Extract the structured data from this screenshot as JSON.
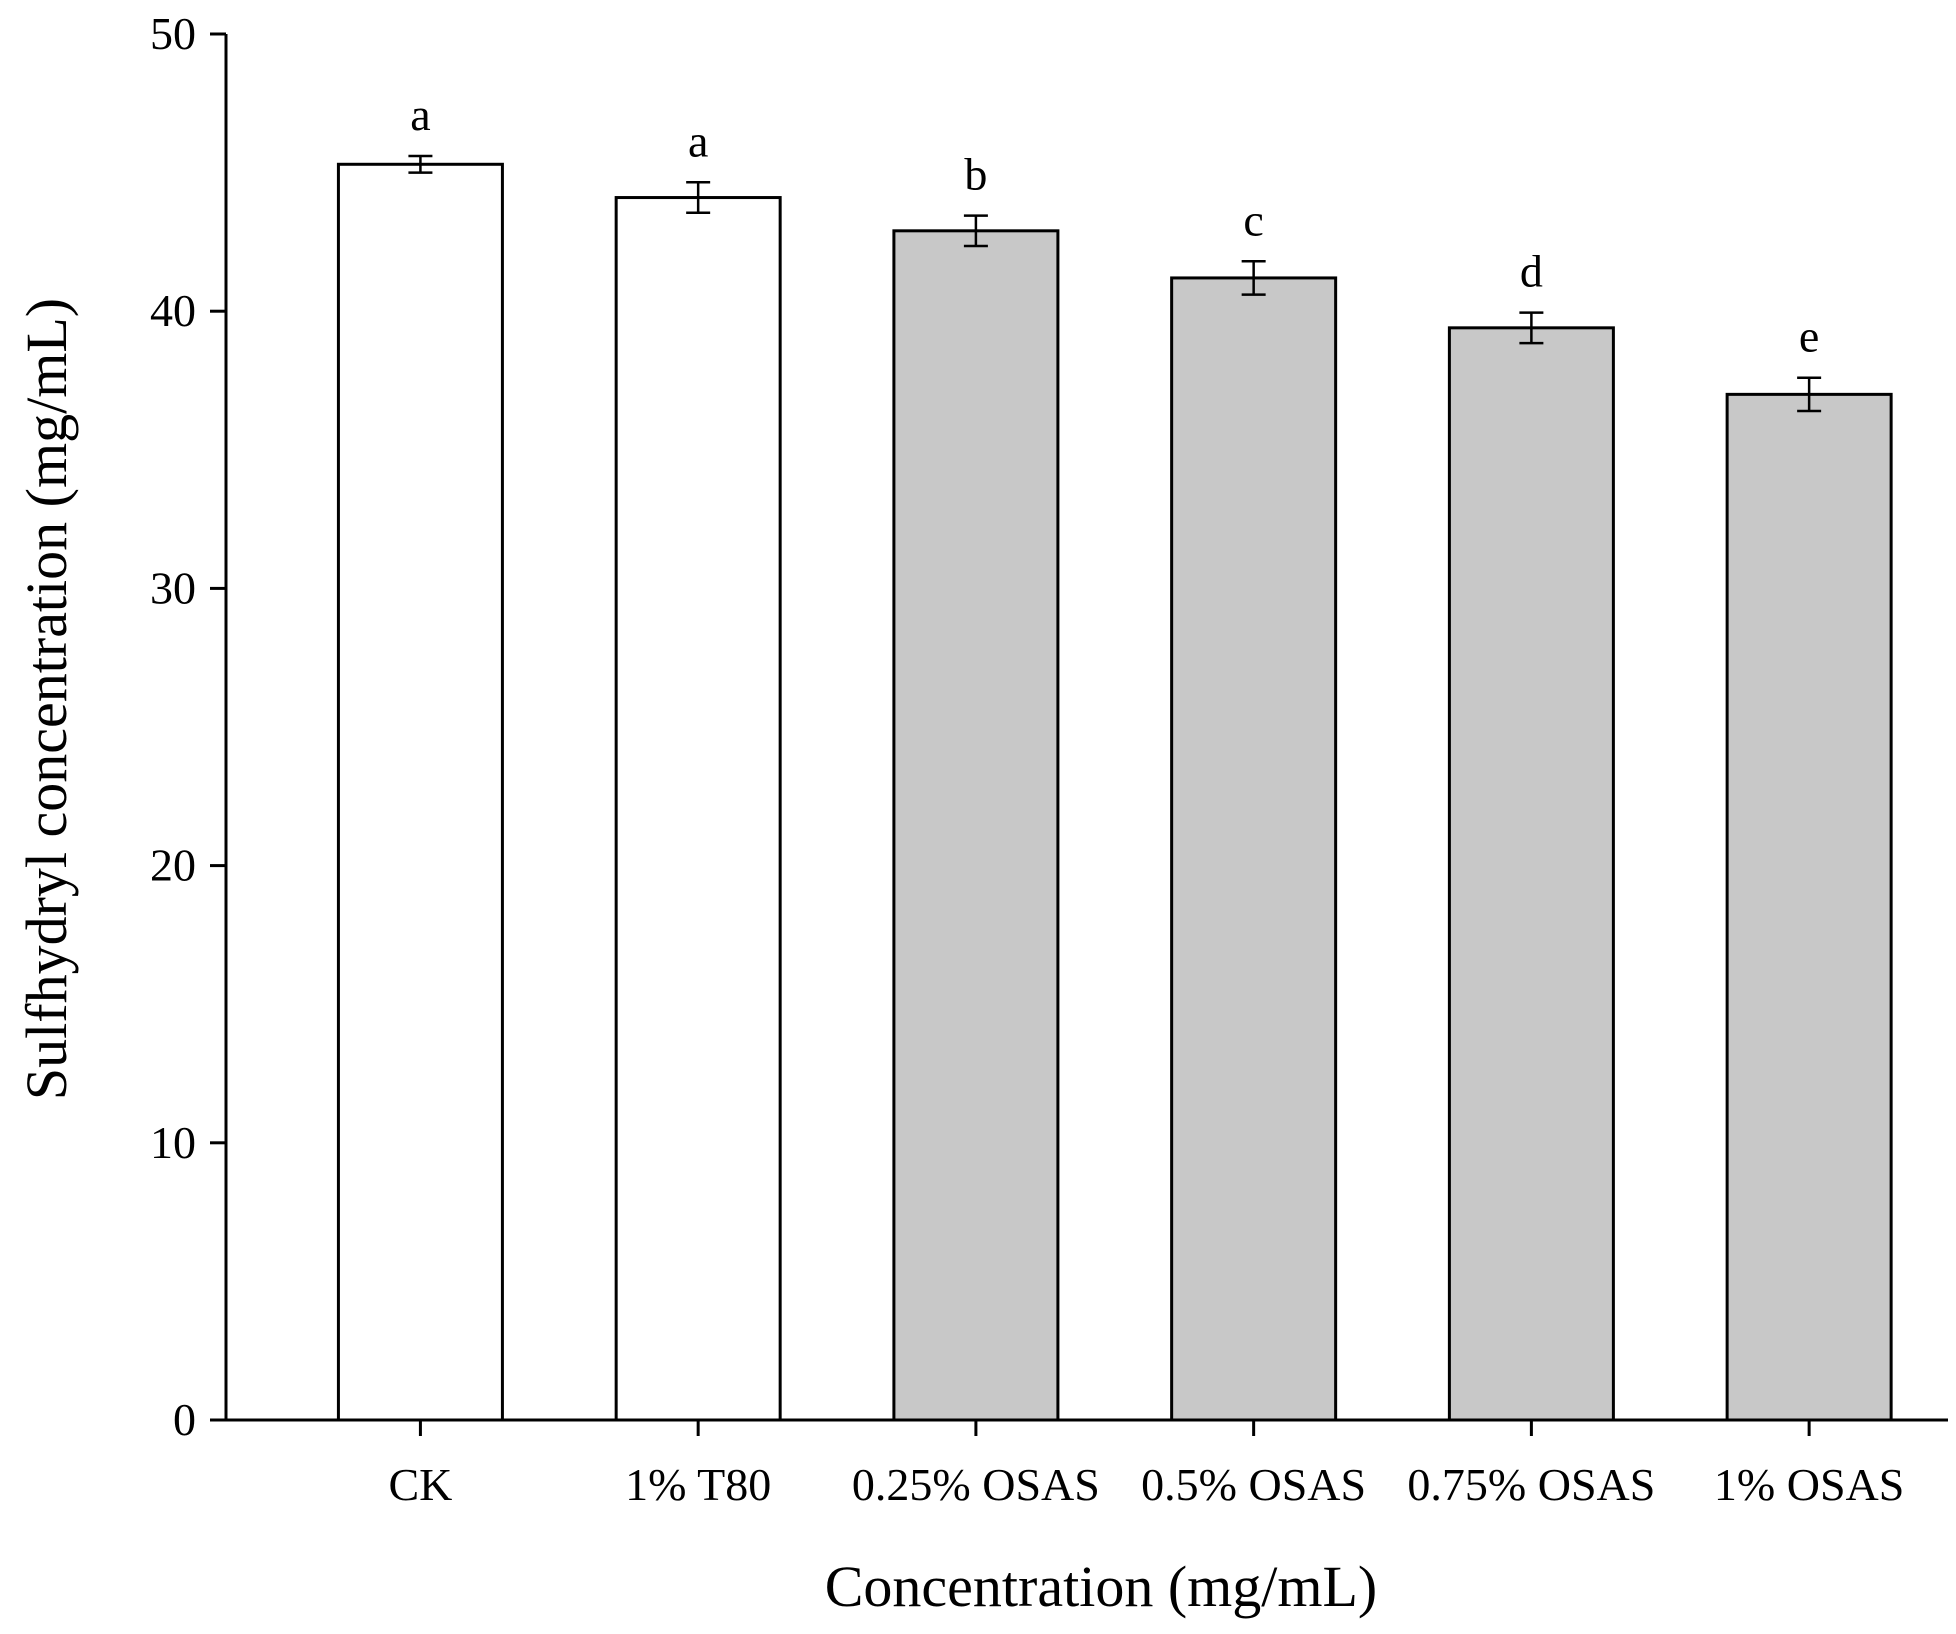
{
  "chart_data": {
    "type": "bar",
    "title": "",
    "xlabel": "Concentration (mg/mL)",
    "ylabel": "Sulfhydryl concentration (mg/mL)",
    "ylim": [
      0,
      50
    ],
    "yticks": [
      0,
      10,
      20,
      30,
      40,
      50
    ],
    "grid": false,
    "categories": [
      "CK",
      "1% T80",
      "0.25% OSAS",
      "0.5% OSAS",
      "0.75% OSAS",
      "1% OSAS"
    ],
    "values": [
      45.3,
      44.1,
      42.9,
      41.2,
      39.4,
      37.0
    ],
    "errors": [
      0.3,
      0.55,
      0.55,
      0.6,
      0.55,
      0.6
    ],
    "significance": [
      "a",
      "a",
      "b",
      "c",
      "d",
      "e"
    ],
    "colors": [
      "#ffffff",
      "#ffffff",
      "#c8c8c8",
      "#c8c8c8",
      "#c8c8c8",
      "#c8c8c8"
    ]
  }
}
